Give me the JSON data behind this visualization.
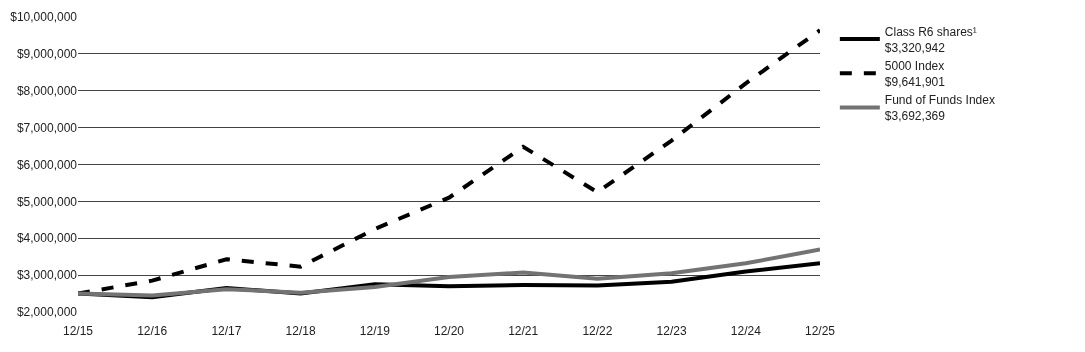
{
  "chart_data": {
    "type": "line",
    "categories": [
      "12/15",
      "12/16",
      "12/17",
      "12/18",
      "12/19",
      "12/20",
      "12/21",
      "12/22",
      "12/23",
      "12/24",
      "12/25"
    ],
    "series": [
      {
        "name": "Class R6 shares¹\n$3,320,942",
        "color": "#000000",
        "line_style": "solid",
        "values": [
          2500000,
          2400000,
          2650000,
          2500000,
          2750000,
          2700000,
          2730000,
          2720000,
          2820000,
          3100000,
          3320942
        ]
      },
      {
        "name": "5000 Index\n$9,641,901",
        "color": "#000000",
        "line_style": "dashed",
        "values": [
          2500000,
          2850000,
          3430000,
          3230000,
          4250000,
          5100000,
          6480000,
          5250000,
          6650000,
          8200000,
          9641901
        ]
      },
      {
        "name": "Fund of Funds Index\n$3,692,369",
        "color": "#737373",
        "line_style": "solid",
        "values": [
          2500000,
          2450000,
          2620000,
          2520000,
          2680000,
          2950000,
          3070000,
          2900000,
          3050000,
          3320000,
          3692369
        ]
      }
    ],
    "ylim": [
      2000000,
      10000000
    ],
    "yticks": [
      {
        "value": 2000000,
        "label": "$2,000,000"
      },
      {
        "value": 3000000,
        "label": "$3,000,000"
      },
      {
        "value": 4000000,
        "label": "$4,000,000"
      },
      {
        "value": 5000000,
        "label": "$5,000,000"
      },
      {
        "value": 6000000,
        "label": "$6,000,000"
      },
      {
        "value": 7000000,
        "label": "$7,000,000"
      },
      {
        "value": 8000000,
        "label": "$8,000,000"
      },
      {
        "value": 9000000,
        "label": "$9,000,000"
      },
      {
        "value": 10000000,
        "label": "$10,000,000"
      }
    ],
    "grid": "y",
    "legend": "top right",
    "marker": "none"
  }
}
